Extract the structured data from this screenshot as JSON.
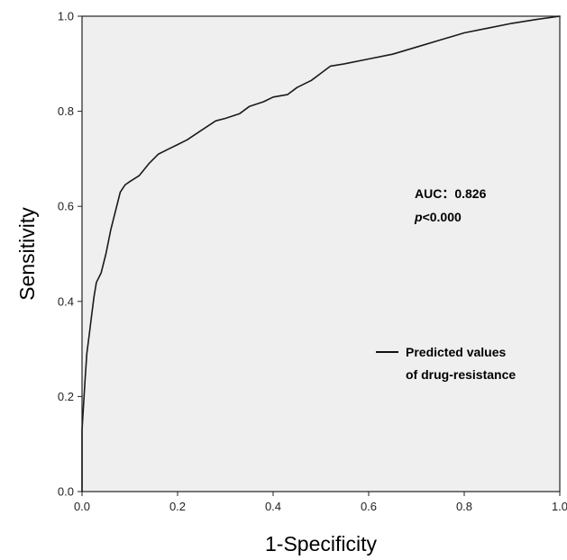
{
  "chart_data": {
    "type": "line",
    "title": "",
    "xlabel": "1-Specificity",
    "ylabel": "Sensitivity",
    "xlim": [
      0.0,
      1.0
    ],
    "ylim": [
      0.0,
      1.0
    ],
    "x_ticks": [
      "0.0",
      "0.2",
      "0.4",
      "0.6",
      "0.8",
      "1.0"
    ],
    "y_ticks": [
      "0.0",
      "0.2",
      "0.4",
      "0.6",
      "0.8",
      "1.0"
    ],
    "grid": false,
    "background": "#efefef",
    "line_color": "#1a1a1a",
    "series": [
      {
        "name": "Predicted values of drug-resistance",
        "x": [
          0.0,
          0.0,
          0.003,
          0.006,
          0.01,
          0.015,
          0.02,
          0.025,
          0.03,
          0.04,
          0.05,
          0.06,
          0.07,
          0.08,
          0.09,
          0.1,
          0.12,
          0.14,
          0.16,
          0.18,
          0.2,
          0.22,
          0.25,
          0.28,
          0.3,
          0.33,
          0.35,
          0.38,
          0.4,
          0.43,
          0.45,
          0.48,
          0.5,
          0.52,
          0.55,
          0.6,
          0.65,
          0.7,
          0.75,
          0.8,
          0.85,
          0.9,
          0.95,
          1.0
        ],
        "y": [
          0.0,
          0.13,
          0.18,
          0.23,
          0.29,
          0.33,
          0.37,
          0.41,
          0.44,
          0.46,
          0.5,
          0.55,
          0.59,
          0.63,
          0.645,
          0.652,
          0.665,
          0.69,
          0.71,
          0.72,
          0.73,
          0.74,
          0.76,
          0.78,
          0.785,
          0.795,
          0.81,
          0.82,
          0.83,
          0.835,
          0.85,
          0.865,
          0.88,
          0.895,
          0.9,
          0.91,
          0.92,
          0.935,
          0.95,
          0.965,
          0.975,
          0.985,
          0.993,
          1.0
        ]
      }
    ],
    "annotations": {
      "auc": "AUC：0.826",
      "p_prefix": "p",
      "p_suffix": "<0.000"
    },
    "legend": {
      "position": "right",
      "line1": "Predicted values",
      "line2": "of drug-resistance"
    }
  }
}
